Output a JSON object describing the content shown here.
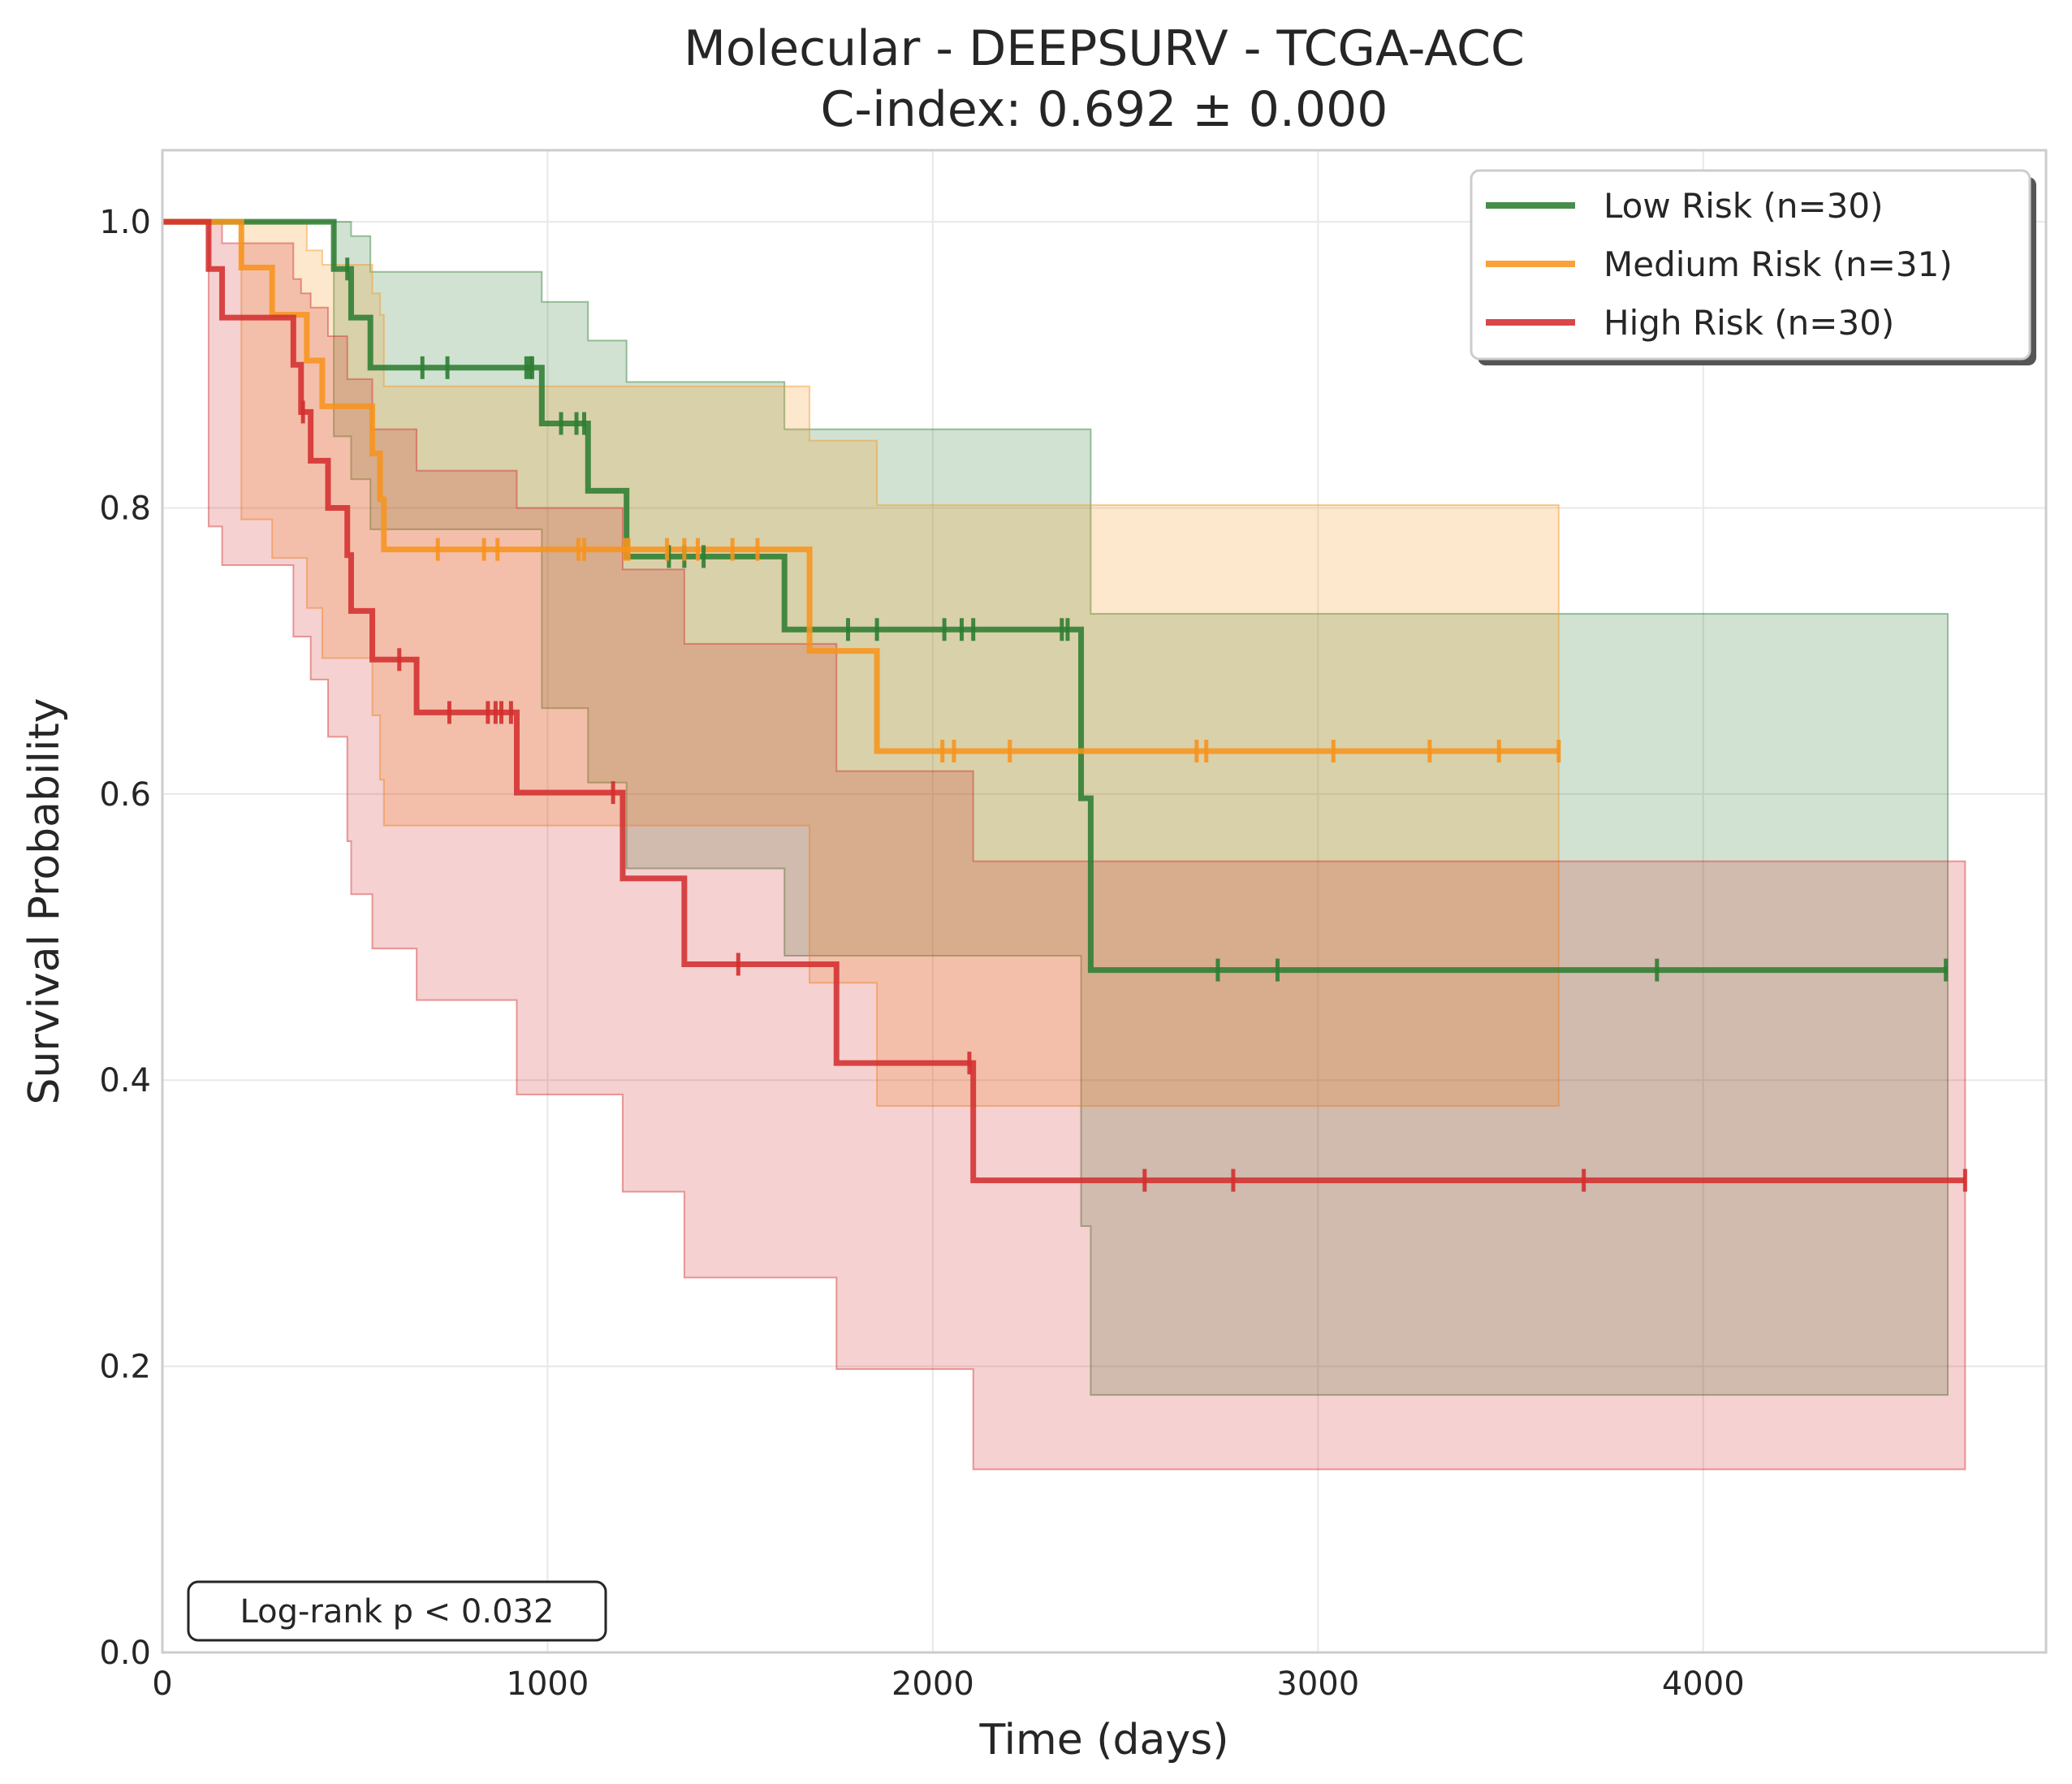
{
  "chart_data": {
    "type": "line",
    "title": "Molecular - DEEPSURV - TCGA-ACC",
    "subtitle": "C-index: 0.692 ± 0.000",
    "xlabel": "Time (days)",
    "ylabel": "Survival Probability",
    "xlim": [
      0,
      4890
    ],
    "ylim": [
      0,
      1.05
    ],
    "xticks": [
      0,
      1000,
      2000,
      3000,
      4000
    ],
    "xtick_labels": [
      "0",
      "1000",
      "2000",
      "3000",
      "4000"
    ],
    "yticks": [
      0.0,
      0.2,
      0.4,
      0.6,
      0.8,
      1.0
    ],
    "ytick_labels": [
      "0.0",
      "0.2",
      "0.4",
      "0.6",
      "0.8",
      "1.0"
    ],
    "grid": true,
    "legend_position": "top-right",
    "annotation": "Log-rank p < 0.032",
    "series": [
      {
        "name": "Low Risk (n=30)",
        "color": "#2e7d32",
        "steps": [
          [
            0,
            1.0
          ],
          [
            445,
            0.967
          ],
          [
            490,
            0.933
          ],
          [
            540,
            0.898
          ],
          [
            985,
            0.859
          ],
          [
            1105,
            0.812
          ],
          [
            1205,
            0.766
          ],
          [
            1615,
            0.715
          ],
          [
            2385,
            0.597
          ],
          [
            2410,
            0.477
          ],
          [
            4635,
            0.477
          ]
        ],
        "ci_upper": [
          [
            0,
            1.0
          ],
          [
            445,
            1.0
          ],
          [
            490,
            0.99
          ],
          [
            540,
            0.965
          ],
          [
            985,
            0.944
          ],
          [
            1105,
            0.917
          ],
          [
            1205,
            0.888
          ],
          [
            1615,
            0.855
          ],
          [
            2385,
            0.855
          ],
          [
            2410,
            0.726
          ],
          [
            4635,
            0.726
          ]
        ],
        "ci_lower": [
          [
            0,
            1.0
          ],
          [
            445,
            0.85
          ],
          [
            490,
            0.82
          ],
          [
            540,
            0.785
          ],
          [
            985,
            0.66
          ],
          [
            1105,
            0.608
          ],
          [
            1205,
            0.548
          ],
          [
            1615,
            0.487
          ],
          [
            2385,
            0.298
          ],
          [
            2410,
            0.18
          ],
          [
            4635,
            0.18
          ]
        ],
        "censor_times": [
          480,
          675,
          740,
          945,
          955,
          960,
          1035,
          1075,
          1095,
          1315,
          1355,
          1405,
          1780,
          1855,
          2030,
          2075,
          2105,
          2335,
          2350,
          2740,
          2895,
          3880,
          4630
        ]
      },
      {
        "name": "Medium Risk (n=31)",
        "color": "#f7941d",
        "steps": [
          [
            0,
            1.0
          ],
          [
            205,
            0.968
          ],
          [
            285,
            0.935
          ],
          [
            375,
            0.903
          ],
          [
            415,
            0.871
          ],
          [
            545,
            0.838
          ],
          [
            565,
            0.806
          ],
          [
            575,
            0.771
          ],
          [
            1680,
            0.7
          ],
          [
            1855,
            0.63
          ],
          [
            3625,
            0.63
          ]
        ],
        "ci_upper": [
          [
            0,
            1.0
          ],
          [
            205,
            1.0
          ],
          [
            285,
            1.0
          ],
          [
            375,
            0.98
          ],
          [
            415,
            0.97
          ],
          [
            545,
            0.95
          ],
          [
            565,
            0.935
          ],
          [
            575,
            0.885
          ],
          [
            1615,
            0.885
          ],
          [
            1680,
            0.847
          ],
          [
            1855,
            0.802
          ],
          [
            3625,
            0.802
          ]
        ],
        "ci_lower": [
          [
            0,
            1.0
          ],
          [
            205,
            0.792
          ],
          [
            285,
            0.765
          ],
          [
            375,
            0.73
          ],
          [
            415,
            0.695
          ],
          [
            545,
            0.655
          ],
          [
            565,
            0.61
          ],
          [
            575,
            0.578
          ],
          [
            1680,
            0.468
          ],
          [
            1855,
            0.382
          ],
          [
            3625,
            0.382
          ]
        ],
        "censor_times": [
          715,
          835,
          870,
          1080,
          1095,
          1200,
          1210,
          1310,
          1355,
          1390,
          1480,
          1545,
          2025,
          2055,
          2200,
          2685,
          2710,
          3040,
          3290,
          3470,
          3625
        ]
      },
      {
        "name": "High Risk (n=30)",
        "color": "#d32f2f",
        "steps": [
          [
            0,
            1.0
          ],
          [
            120,
            0.967
          ],
          [
            155,
            0.933
          ],
          [
            340,
            0.9
          ],
          [
            360,
            0.867
          ],
          [
            385,
            0.833
          ],
          [
            430,
            0.8
          ],
          [
            480,
            0.767
          ],
          [
            490,
            0.728
          ],
          [
            545,
            0.694
          ],
          [
            660,
            0.657
          ],
          [
            920,
            0.601
          ],
          [
            1195,
            0.541
          ],
          [
            1355,
            0.481
          ],
          [
            1750,
            0.412
          ],
          [
            2105,
            0.33
          ],
          [
            4680,
            0.33
          ]
        ],
        "ci_upper": [
          [
            0,
            1.0
          ],
          [
            120,
            1.0
          ],
          [
            155,
            0.985
          ],
          [
            340,
            0.96
          ],
          [
            360,
            0.95
          ],
          [
            385,
            0.94
          ],
          [
            430,
            0.92
          ],
          [
            480,
            0.89
          ],
          [
            545,
            0.855
          ],
          [
            660,
            0.826
          ],
          [
            920,
            0.8
          ],
          [
            1195,
            0.757
          ],
          [
            1355,
            0.705
          ],
          [
            1750,
            0.616
          ],
          [
            2105,
            0.553
          ],
          [
            4680,
            0.553
          ]
        ],
        "ci_lower": [
          [
            0,
            1.0
          ],
          [
            120,
            0.787
          ],
          [
            155,
            0.76
          ],
          [
            340,
            0.71
          ],
          [
            385,
            0.68
          ],
          [
            430,
            0.64
          ],
          [
            480,
            0.567
          ],
          [
            490,
            0.53
          ],
          [
            545,
            0.492
          ],
          [
            660,
            0.456
          ],
          [
            920,
            0.39
          ],
          [
            1195,
            0.322
          ],
          [
            1355,
            0.262
          ],
          [
            1750,
            0.198
          ],
          [
            2105,
            0.128
          ],
          [
            4680,
            0.128
          ]
        ],
        "censor_times": [
          365,
          615,
          745,
          845,
          865,
          880,
          905,
          1170,
          1495,
          2095,
          2550,
          2780,
          3690,
          4680
        ]
      }
    ]
  }
}
